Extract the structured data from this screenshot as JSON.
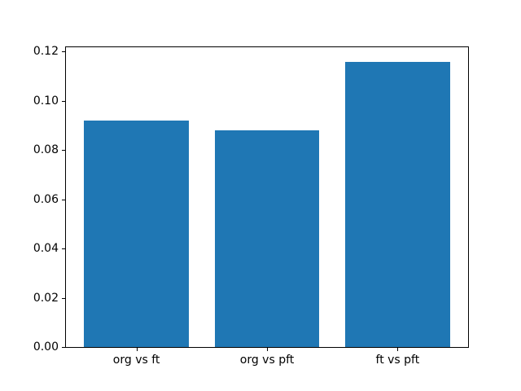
{
  "figure": {
    "background": "#ffffff",
    "plot_background": "#ffffff",
    "spine_color": "#000000"
  },
  "chart_data": {
    "type": "bar",
    "title": "",
    "xlabel": "",
    "ylabel": "",
    "categories": [
      "org vs ft",
      "org vs pft",
      "ft vs pft"
    ],
    "values": [
      0.092,
      0.088,
      0.116
    ],
    "bar_color": "#1f77b4",
    "bar_width_data_units": 0.8,
    "xlim": [
      -0.54,
      2.54
    ],
    "ylim": [
      0,
      0.1218
    ],
    "yticks": [
      {
        "value": 0.0,
        "label": "0.00"
      },
      {
        "value": 0.02,
        "label": "0.02"
      },
      {
        "value": 0.04,
        "label": "0.04"
      },
      {
        "value": 0.06,
        "label": "0.06"
      },
      {
        "value": 0.08,
        "label": "0.08"
      },
      {
        "value": 0.1,
        "label": "0.10"
      },
      {
        "value": 0.12,
        "label": "0.12"
      }
    ],
    "grid": false,
    "legend": null
  }
}
